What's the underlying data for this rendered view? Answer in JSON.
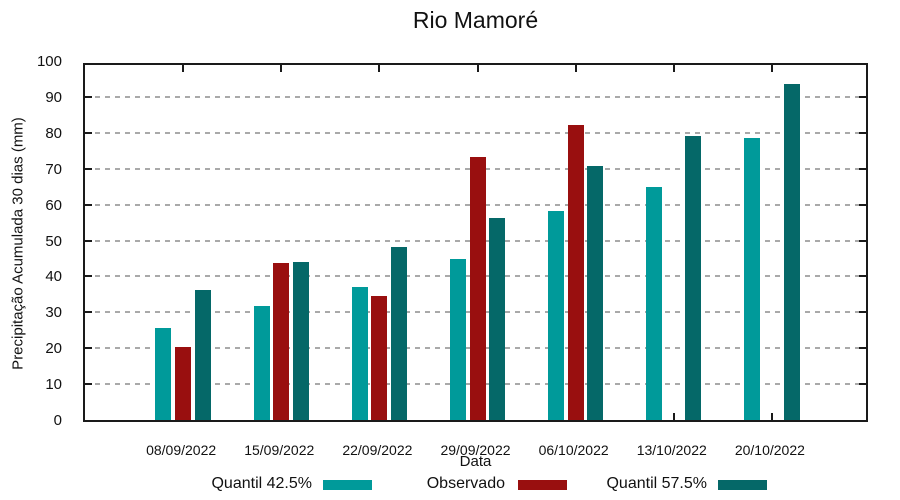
{
  "chart_data": {
    "type": "bar",
    "title": "Rio Mamoré",
    "xlabel": "Data",
    "ylabel": "Precipitação Acumulada 30 dias (mm)",
    "ylim": [
      0,
      100
    ],
    "yticks": [
      0,
      10,
      20,
      30,
      40,
      50,
      60,
      70,
      80,
      90,
      100
    ],
    "grid": "horizontal-dashed",
    "legend_position": "bottom",
    "categories": [
      "08/09/2022",
      "15/09/2022",
      "22/09/2022",
      "29/09/2022",
      "06/10/2022",
      "13/10/2022",
      "20/10/2022"
    ],
    "series": [
      {
        "name": "Quantil 42.5%",
        "color": "#009a9a",
        "values": [
          25.7,
          31.8,
          37.1,
          44.9,
          58.2,
          65.0,
          78.5
        ]
      },
      {
        "name": "Observado",
        "color": "#990f0f",
        "values": [
          20.3,
          43.7,
          34.5,
          73.3,
          82.1,
          null,
          null
        ]
      },
      {
        "name": "Quantil 57.5%",
        "color": "#056868",
        "values": [
          36.1,
          43.9,
          48.2,
          56.4,
          70.8,
          79.2,
          93.6
        ]
      }
    ],
    "colors": {
      "grid": "#a9a9a9",
      "axis": "#1a1a1a",
      "background": "#ffffff"
    }
  }
}
